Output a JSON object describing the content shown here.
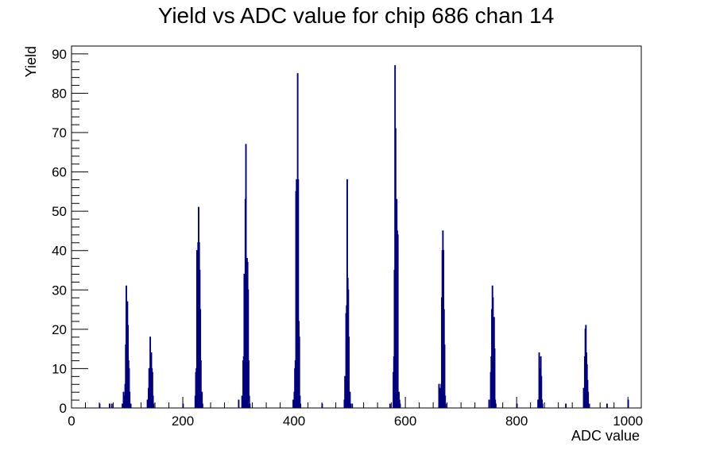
{
  "chart_data": {
    "type": "bar",
    "title": "Yield vs ADC value for chip 686 chan 14",
    "xlabel": "ADC value",
    "ylabel": "Yield",
    "xlim": [
      0,
      1024
    ],
    "ylim": [
      0,
      92
    ],
    "x_ticks": [
      0,
      200,
      400,
      600,
      800,
      1000
    ],
    "y_ticks": [
      0,
      10,
      20,
      30,
      40,
      50,
      60,
      70,
      80,
      90
    ],
    "grid": false,
    "legend": "none",
    "series_color": "#00007f",
    "bins": [
      {
        "x": 50,
        "y": 1
      },
      {
        "x": 68,
        "y": 1
      },
      {
        "x": 72,
        "y": 1
      },
      {
        "x": 91,
        "y": 1
      },
      {
        "x": 93,
        "y": 4
      },
      {
        "x": 95,
        "y": 3
      },
      {
        "x": 96,
        "y": 6
      },
      {
        "x": 97,
        "y": 16
      },
      {
        "x": 98,
        "y": 31
      },
      {
        "x": 99,
        "y": 20
      },
      {
        "x": 100,
        "y": 27
      },
      {
        "x": 101,
        "y": 21
      },
      {
        "x": 102,
        "y": 12
      },
      {
        "x": 103,
        "y": 10
      },
      {
        "x": 104,
        "y": 4
      },
      {
        "x": 106,
        "y": 1
      },
      {
        "x": 136,
        "y": 2
      },
      {
        "x": 138,
        "y": 5
      },
      {
        "x": 139,
        "y": 10
      },
      {
        "x": 140,
        "y": 10
      },
      {
        "x": 141,
        "y": 18
      },
      {
        "x": 142,
        "y": 9
      },
      {
        "x": 143,
        "y": 14
      },
      {
        "x": 144,
        "y": 10
      },
      {
        "x": 145,
        "y": 9
      },
      {
        "x": 146,
        "y": 3
      },
      {
        "x": 147,
        "y": 1
      },
      {
        "x": 200,
        "y": 1
      },
      {
        "x": 222,
        "y": 3
      },
      {
        "x": 223,
        "y": 9
      },
      {
        "x": 224,
        "y": 10
      },
      {
        "x": 225,
        "y": 40
      },
      {
        "x": 226,
        "y": 37
      },
      {
        "x": 227,
        "y": 42
      },
      {
        "x": 228,
        "y": 51
      },
      {
        "x": 229,
        "y": 42
      },
      {
        "x": 230,
        "y": 35
      },
      {
        "x": 231,
        "y": 25
      },
      {
        "x": 232,
        "y": 12
      },
      {
        "x": 233,
        "y": 3
      },
      {
        "x": 234,
        "y": 4
      },
      {
        "x": 235,
        "y": 1
      },
      {
        "x": 300,
        "y": 2
      },
      {
        "x": 306,
        "y": 3
      },
      {
        "x": 308,
        "y": 12
      },
      {
        "x": 309,
        "y": 13
      },
      {
        "x": 310,
        "y": 34
      },
      {
        "x": 311,
        "y": 30
      },
      {
        "x": 312,
        "y": 53
      },
      {
        "x": 313,
        "y": 67
      },
      {
        "x": 314,
        "y": 29
      },
      {
        "x": 315,
        "y": 38
      },
      {
        "x": 316,
        "y": 37
      },
      {
        "x": 317,
        "y": 30
      },
      {
        "x": 318,
        "y": 12
      },
      {
        "x": 319,
        "y": 3
      },
      {
        "x": 320,
        "y": 1
      },
      {
        "x": 398,
        "y": 2
      },
      {
        "x": 400,
        "y": 4
      },
      {
        "x": 401,
        "y": 10
      },
      {
        "x": 402,
        "y": 12
      },
      {
        "x": 403,
        "y": 55
      },
      {
        "x": 404,
        "y": 58
      },
      {
        "x": 405,
        "y": 54
      },
      {
        "x": 406,
        "y": 85
      },
      {
        "x": 407,
        "y": 58
      },
      {
        "x": 408,
        "y": 22
      },
      {
        "x": 409,
        "y": 18
      },
      {
        "x": 410,
        "y": 3
      },
      {
        "x": 411,
        "y": 1
      },
      {
        "x": 450,
        "y": 1
      },
      {
        "x": 490,
        "y": 2
      },
      {
        "x": 491,
        "y": 8
      },
      {
        "x": 492,
        "y": 4
      },
      {
        "x": 493,
        "y": 24
      },
      {
        "x": 494,
        "y": 26
      },
      {
        "x": 495,
        "y": 58
      },
      {
        "x": 496,
        "y": 33
      },
      {
        "x": 497,
        "y": 30
      },
      {
        "x": 498,
        "y": 18
      },
      {
        "x": 499,
        "y": 4
      },
      {
        "x": 500,
        "y": 4
      },
      {
        "x": 501,
        "y": 1
      },
      {
        "x": 504,
        "y": 1
      },
      {
        "x": 572,
        "y": 1
      },
      {
        "x": 578,
        "y": 9
      },
      {
        "x": 579,
        "y": 13
      },
      {
        "x": 580,
        "y": 35
      },
      {
        "x": 581,
        "y": 87
      },
      {
        "x": 582,
        "y": 71
      },
      {
        "x": 583,
        "y": 44
      },
      {
        "x": 584,
        "y": 53
      },
      {
        "x": 585,
        "y": 45
      },
      {
        "x": 586,
        "y": 44
      },
      {
        "x": 587,
        "y": 3
      },
      {
        "x": 588,
        "y": 4
      },
      {
        "x": 589,
        "y": 2
      },
      {
        "x": 590,
        "y": 1
      },
      {
        "x": 660,
        "y": 6
      },
      {
        "x": 662,
        "y": 5
      },
      {
        "x": 664,
        "y": 6
      },
      {
        "x": 665,
        "y": 28
      },
      {
        "x": 666,
        "y": 40
      },
      {
        "x": 667,
        "y": 45
      },
      {
        "x": 668,
        "y": 40
      },
      {
        "x": 669,
        "y": 25
      },
      {
        "x": 670,
        "y": 16
      },
      {
        "x": 671,
        "y": 3
      },
      {
        "x": 672,
        "y": 1
      },
      {
        "x": 750,
        "y": 2
      },
      {
        "x": 753,
        "y": 9
      },
      {
        "x": 754,
        "y": 13
      },
      {
        "x": 755,
        "y": 25
      },
      {
        "x": 756,
        "y": 31
      },
      {
        "x": 757,
        "y": 28
      },
      {
        "x": 758,
        "y": 19
      },
      {
        "x": 759,
        "y": 23
      },
      {
        "x": 760,
        "y": 15
      },
      {
        "x": 761,
        "y": 2
      },
      {
        "x": 762,
        "y": 1
      },
      {
        "x": 800,
        "y": 1
      },
      {
        "x": 838,
        "y": 2
      },
      {
        "x": 840,
        "y": 14
      },
      {
        "x": 841,
        "y": 10
      },
      {
        "x": 842,
        "y": 8
      },
      {
        "x": 843,
        "y": 13
      },
      {
        "x": 844,
        "y": 8
      },
      {
        "x": 845,
        "y": 2
      },
      {
        "x": 846,
        "y": 1
      },
      {
        "x": 888,
        "y": 1
      },
      {
        "x": 920,
        "y": 5
      },
      {
        "x": 922,
        "y": 13
      },
      {
        "x": 923,
        "y": 20
      },
      {
        "x": 924,
        "y": 21
      },
      {
        "x": 925,
        "y": 14
      },
      {
        "x": 926,
        "y": 11
      },
      {
        "x": 927,
        "y": 7
      },
      {
        "x": 928,
        "y": 4
      },
      {
        "x": 930,
        "y": 1
      },
      {
        "x": 962,
        "y": 1
      },
      {
        "x": 1000,
        "y": 2
      }
    ]
  }
}
